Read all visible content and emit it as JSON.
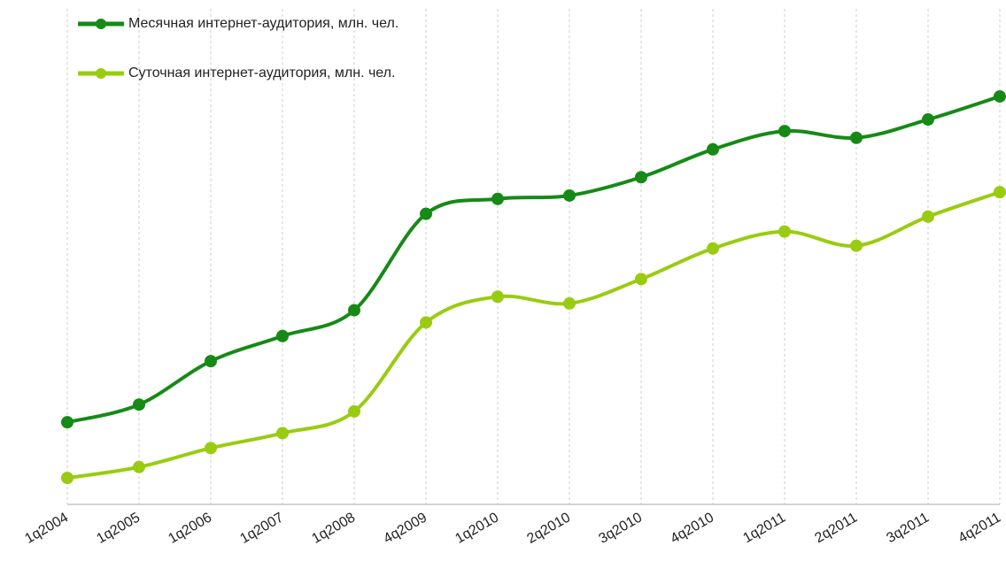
{
  "chart_data": {
    "type": "line",
    "categories": [
      "1q2004",
      "1q2005",
      "1q2006",
      "1q2007",
      "1q2008",
      "4q2009",
      "1q2010",
      "2q2010",
      "3q2010",
      "4q2010",
      "1q2011",
      "2q2011",
      "3q2011",
      "4q2011"
    ],
    "series": [
      {
        "name": "Месячная интернет-аудитория, млн. чел.",
        "color": "#168a16",
        "values": [
          12.1,
          14.7,
          21.1,
          24.8,
          28.6,
          42.8,
          45.0,
          45.5,
          48.2,
          52.3,
          55.0,
          54.0,
          56.7,
          60.1
        ]
      },
      {
        "name": "Суточная интернет-аудитория, млн. чел.",
        "color": "#99cc11",
        "values": [
          3.9,
          5.5,
          8.3,
          10.5,
          13.7,
          26.8,
          30.6,
          29.6,
          33.2,
          37.7,
          40.2,
          38.1,
          42.4,
          46.0
        ]
      }
    ],
    "ylim": [
      0,
      73
    ],
    "grid": true,
    "legend": "top-left"
  }
}
